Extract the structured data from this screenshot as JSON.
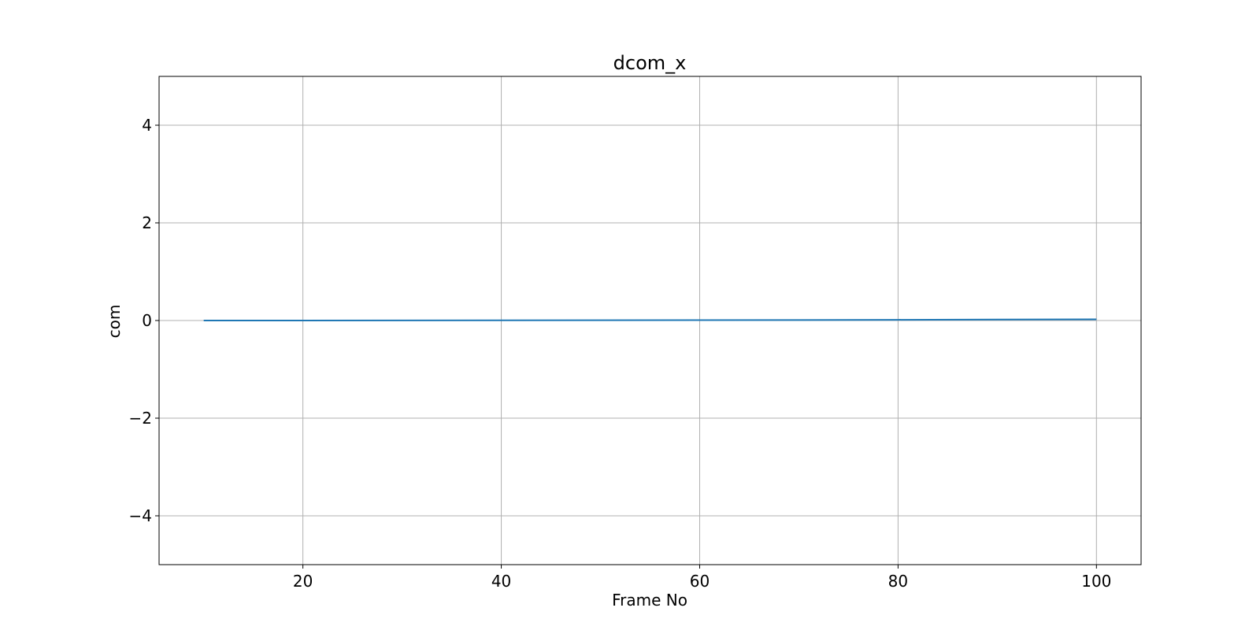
{
  "chart_data": {
    "type": "line",
    "title": "dcom_x",
    "xlabel": "Frame No",
    "ylabel": "com",
    "xlim": [
      5.5,
      104.5
    ],
    "ylim": [
      -5,
      5
    ],
    "xticks": [
      20,
      40,
      60,
      80,
      100
    ],
    "yticks": [
      -4,
      -2,
      0,
      2,
      4
    ],
    "xtick_labels": [
      "20",
      "40",
      "60",
      "80",
      "100"
    ],
    "ytick_labels": [
      "−4",
      "−2",
      "0",
      "2",
      "4"
    ],
    "grid": true,
    "legend": "none",
    "series": [
      {
        "color": "#1f77b4",
        "x": [
          10,
          20,
          30,
          40,
          50,
          60,
          70,
          80,
          90,
          100
        ],
        "y": [
          0.0,
          0.0,
          0.002,
          0.004,
          0.006,
          0.008,
          0.01,
          0.015,
          0.02,
          0.025
        ]
      }
    ]
  }
}
